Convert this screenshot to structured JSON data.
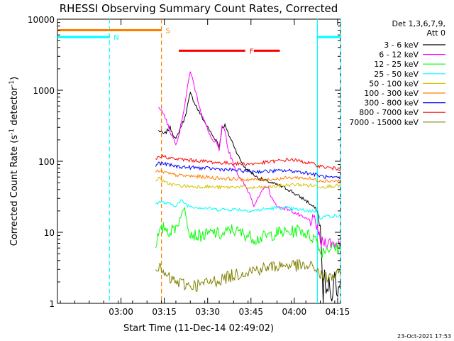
{
  "chart_data": {
    "type": "line",
    "title": "RHESSI Observing Summary Count Rates, Corrected",
    "xlabel": "Start Time (11-Dec-14 02:49:02)",
    "ylabel_main": "Corrected Count Rate (s",
    "ylabel_sup1": "-1",
    "ylabel_mid": " detector",
    "ylabel_sup2": "-1",
    "ylabel_end": ")",
    "yscale": "log",
    "ylim": [
      1,
      10000
    ],
    "xlim_min": [
      -11,
      87
    ],
    "x_ticks": [
      {
        "min": 11,
        "label": "03:00"
      },
      {
        "min": 26,
        "label": "03:15"
      },
      {
        "min": 41,
        "label": "03:30"
      },
      {
        "min": 56,
        "label": "03:45"
      },
      {
        "min": 71,
        "label": "04:00"
      },
      {
        "min": 86,
        "label": "04:15"
      }
    ],
    "y_ticks": [
      {
        "v": 1,
        "label": "1"
      },
      {
        "v": 10,
        "label": "10"
      },
      {
        "v": 100,
        "label": "100"
      },
      {
        "v": 1000,
        "label": "1000"
      },
      {
        "v": 10000,
        "label": "10000"
      }
    ],
    "legend_title": "Det 1,3,6,7,9,",
    "legend_subtitle": "Att 0",
    "legend_placement": "right, outside plot",
    "series": [
      {
        "name": "3 - 6 keV",
        "color": "#000000",
        "points": [
          [
            24,
            270
          ],
          [
            26,
            240
          ],
          [
            28,
            300
          ],
          [
            30,
            200
          ],
          [
            31,
            260
          ],
          [
            33,
            400
          ],
          [
            35,
            900
          ],
          [
            37,
            600
          ],
          [
            39,
            420
          ],
          [
            41,
            300
          ],
          [
            43,
            220
          ],
          [
            44,
            200
          ],
          [
            45,
            160
          ],
          [
            46,
            300
          ],
          [
            47,
            320
          ],
          [
            48,
            250
          ],
          [
            50,
            170
          ],
          [
            52,
            110
          ],
          [
            54,
            80
          ],
          [
            56,
            70
          ],
          [
            58,
            60
          ],
          [
            60,
            55
          ],
          [
            62,
            52
          ],
          [
            64,
            48
          ],
          [
            66,
            45
          ],
          [
            68,
            42
          ],
          [
            70,
            38
          ],
          [
            72,
            33
          ],
          [
            74,
            30
          ],
          [
            76,
            26
          ],
          [
            78,
            22
          ],
          [
            79,
            20
          ],
          [
            80,
            12
          ],
          [
            81,
            1.2
          ],
          [
            81.5,
            3
          ],
          [
            82,
            1.2
          ],
          [
            83,
            2
          ],
          [
            84,
            1.2
          ],
          [
            85,
            2.5
          ],
          [
            86,
            1.3
          ],
          [
            87,
            2
          ]
        ]
      },
      {
        "name": "6 - 12 keV",
        "color": "#ff00ff",
        "points": [
          [
            24,
            600
          ],
          [
            26,
            450
          ],
          [
            28,
            260
          ],
          [
            30,
            180
          ],
          [
            31,
            230
          ],
          [
            33,
            600
          ],
          [
            35,
            1900
          ],
          [
            37,
            900
          ],
          [
            39,
            450
          ],
          [
            41,
            280
          ],
          [
            43,
            180
          ],
          [
            44,
            190
          ],
          [
            45,
            140
          ],
          [
            46,
            300
          ],
          [
            47,
            280
          ],
          [
            48,
            150
          ],
          [
            50,
            90
          ],
          [
            52,
            60
          ],
          [
            54,
            45
          ],
          [
            56,
            32
          ],
          [
            57,
            24
          ],
          [
            58,
            28
          ],
          [
            60,
            38
          ],
          [
            61,
            45
          ],
          [
            62,
            42
          ],
          [
            63,
            32
          ],
          [
            64,
            26
          ],
          [
            66,
            22
          ],
          [
            68,
            22
          ],
          [
            70,
            20
          ],
          [
            72,
            18
          ],
          [
            74,
            16
          ],
          [
            76,
            15
          ],
          [
            78,
            14
          ],
          [
            79,
            12
          ],
          [
            80,
            7
          ],
          [
            82,
            7.5
          ],
          [
            84,
            7
          ],
          [
            86,
            7
          ],
          [
            87,
            7.5
          ]
        ]
      },
      {
        "name": "12 - 25 keV",
        "color": "#00ff00",
        "points": [
          [
            23,
            7
          ],
          [
            24,
            9
          ],
          [
            26,
            12
          ],
          [
            28,
            10
          ],
          [
            30,
            12
          ],
          [
            32,
            18
          ],
          [
            33,
            22
          ],
          [
            34,
            14
          ],
          [
            35,
            10
          ],
          [
            37,
            9
          ],
          [
            40,
            9
          ],
          [
            43,
            10
          ],
          [
            46,
            9
          ],
          [
            49,
            11
          ],
          [
            52,
            10
          ],
          [
            55,
            9
          ],
          [
            58,
            8
          ],
          [
            62,
            9
          ],
          [
            66,
            10
          ],
          [
            70,
            10
          ],
          [
            73,
            11
          ],
          [
            76,
            9
          ],
          [
            79,
            8
          ],
          [
            80,
            5
          ],
          [
            82,
            6
          ],
          [
            84,
            6
          ],
          [
            86,
            6
          ],
          [
            87,
            6
          ]
        ]
      },
      {
        "name": "25 - 50 keV",
        "color": "#00ffff",
        "points": [
          [
            23,
            25
          ],
          [
            24,
            27
          ],
          [
            26,
            26
          ],
          [
            28,
            25
          ],
          [
            30,
            24
          ],
          [
            32,
            28
          ],
          [
            34,
            24
          ],
          [
            36,
            23
          ],
          [
            40,
            22
          ],
          [
            44,
            21
          ],
          [
            48,
            21
          ],
          [
            52,
            21
          ],
          [
            56,
            20
          ],
          [
            60,
            21
          ],
          [
            64,
            22
          ],
          [
            68,
            22
          ],
          [
            72,
            21
          ],
          [
            76,
            20
          ],
          [
            79,
            20
          ],
          [
            80,
            16
          ],
          [
            82,
            17
          ],
          [
            84,
            17
          ],
          [
            86,
            17
          ],
          [
            87,
            17
          ]
        ]
      },
      {
        "name": "50 - 100 keV",
        "color": "#d4c400",
        "points": [
          [
            23,
            50
          ],
          [
            24,
            60
          ],
          [
            26,
            50
          ],
          [
            28,
            48
          ],
          [
            30,
            46
          ],
          [
            32,
            45
          ],
          [
            36,
            44
          ],
          [
            40,
            44
          ],
          [
            44,
            43
          ],
          [
            48,
            43
          ],
          [
            52,
            44
          ],
          [
            56,
            42
          ],
          [
            60,
            43
          ],
          [
            64,
            44
          ],
          [
            68,
            46
          ],
          [
            72,
            47
          ],
          [
            76,
            46
          ],
          [
            79,
            45
          ],
          [
            80,
            44
          ],
          [
            82,
            44
          ],
          [
            84,
            45
          ],
          [
            86,
            45
          ],
          [
            87,
            46
          ]
        ]
      },
      {
        "name": "100 - 300 keV",
        "color": "#ff8000",
        "points": [
          [
            23,
            70
          ],
          [
            24,
            72
          ],
          [
            26,
            70
          ],
          [
            28,
            66
          ],
          [
            30,
            64
          ],
          [
            34,
            62
          ],
          [
            40,
            60
          ],
          [
            44,
            58
          ],
          [
            48,
            57
          ],
          [
            52,
            56
          ],
          [
            56,
            55
          ],
          [
            60,
            55
          ],
          [
            64,
            56
          ],
          [
            68,
            58
          ],
          [
            72,
            59
          ],
          [
            76,
            57
          ],
          [
            79,
            54
          ],
          [
            80,
            54
          ],
          [
            82,
            53
          ],
          [
            84,
            53
          ],
          [
            86,
            53
          ],
          [
            87,
            53
          ]
        ]
      },
      {
        "name": "300 - 800 keV",
        "color": "#0000ff",
        "points": [
          [
            23,
            85
          ],
          [
            24,
            95
          ],
          [
            26,
            92
          ],
          [
            28,
            88
          ],
          [
            30,
            85
          ],
          [
            34,
            82
          ],
          [
            40,
            80
          ],
          [
            44,
            78
          ],
          [
            48,
            76
          ],
          [
            52,
            74
          ],
          [
            56,
            72
          ],
          [
            60,
            72
          ],
          [
            64,
            73
          ],
          [
            68,
            74
          ],
          [
            72,
            72
          ],
          [
            76,
            68
          ],
          [
            79,
            64
          ],
          [
            80,
            62
          ],
          [
            82,
            60
          ],
          [
            84,
            58
          ],
          [
            86,
            58
          ],
          [
            87,
            58
          ]
        ]
      },
      {
        "name": "800 - 7000 keV",
        "color": "#ff0000",
        "points": [
          [
            23,
            105
          ],
          [
            24,
            115
          ],
          [
            26,
            118
          ],
          [
            28,
            110
          ],
          [
            30,
            108
          ],
          [
            34,
            104
          ],
          [
            40,
            100
          ],
          [
            44,
            96
          ],
          [
            48,
            94
          ],
          [
            52,
            92
          ],
          [
            56,
            92
          ],
          [
            60,
            95
          ],
          [
            64,
            100
          ],
          [
            68,
            104
          ],
          [
            70,
            106
          ],
          [
            72,
            102
          ],
          [
            76,
            95
          ],
          [
            79,
            88
          ],
          [
            80,
            85
          ],
          [
            82,
            82
          ],
          [
            84,
            80
          ],
          [
            86,
            78
          ],
          [
            87,
            78
          ]
        ]
      },
      {
        "name": "7000 - 15000 keV",
        "color": "#808000",
        "points": [
          [
            23,
            3.5
          ],
          [
            24,
            3.2
          ],
          [
            26,
            2.5
          ],
          [
            28,
            2.2
          ],
          [
            30,
            2
          ],
          [
            34,
            1.8
          ],
          [
            38,
            1.8
          ],
          [
            42,
            2
          ],
          [
            46,
            2.2
          ],
          [
            50,
            2.5
          ],
          [
            54,
            2.8
          ],
          [
            58,
            3
          ],
          [
            62,
            3.2
          ],
          [
            66,
            3.4
          ],
          [
            70,
            3.5
          ],
          [
            74,
            3.3
          ],
          [
            78,
            3.2
          ],
          [
            79,
            3
          ],
          [
            80,
            2.5
          ],
          [
            82,
            2.3
          ],
          [
            84,
            2.4
          ],
          [
            86,
            2.5
          ],
          [
            87,
            2.5
          ]
        ]
      }
    ],
    "flag_bars": [
      {
        "label": "S",
        "color": "#ff8000",
        "v": 7000,
        "segments": [
          [
            -11,
            25
          ]
        ]
      },
      {
        "label": "N",
        "color": "#00ffff",
        "v": 5600,
        "segments": [
          [
            -11,
            7
          ],
          [
            79,
            87
          ]
        ]
      },
      {
        "label": "F",
        "color": "#ff0000",
        "v": 3600,
        "segments": [
          [
            31,
            54
          ],
          [
            57,
            66
          ]
        ]
      }
    ],
    "vertical_lines": [
      {
        "min": 7,
        "color": "#00ffff",
        "dash": true
      },
      {
        "min": 25,
        "color": "#ff8000",
        "dash": true
      },
      {
        "min": 79,
        "color": "#00ffff",
        "dash": false
      },
      {
        "min": 87,
        "color": "#00ffff",
        "dash": true
      }
    ],
    "grid": false
  },
  "footer_timestamp": "23-Oct-2021 17:53"
}
